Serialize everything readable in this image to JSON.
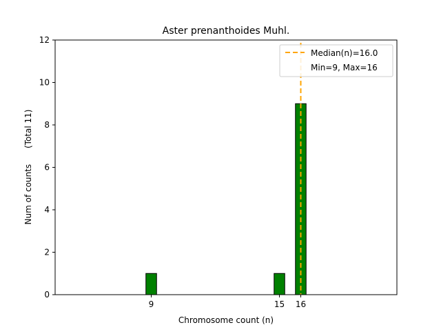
{
  "chart_data": {
    "type": "bar",
    "title": "Aster prenanthoides Muhl.",
    "xlabel": "Chromosome count (n)",
    "ylabel": "Num of counts      (Total 11)",
    "xlim": [
      4.5,
      20.5
    ],
    "ylim": [
      0,
      12
    ],
    "yticks": [
      0,
      2,
      4,
      6,
      8,
      10,
      12
    ],
    "xticks": [
      {
        "value": 9,
        "label": "9"
      },
      {
        "value": 15,
        "label": "15"
      },
      {
        "value": 16,
        "label": "16"
      }
    ],
    "bars": [
      {
        "x": 9,
        "count": 1
      },
      {
        "x": 15,
        "count": 1
      },
      {
        "x": 16,
        "count": 9
      }
    ],
    "bar_width": 0.5,
    "baseline_range": [
      4.5,
      14.3
    ],
    "median": 16.0,
    "colors": {
      "bar": "#008000",
      "median": "#FFA500"
    },
    "legend": {
      "placement": "top-right",
      "entries": [
        {
          "label": "Median(n)=16.0"
        },
        {
          "label": "Min=9, Max=16"
        }
      ]
    }
  }
}
